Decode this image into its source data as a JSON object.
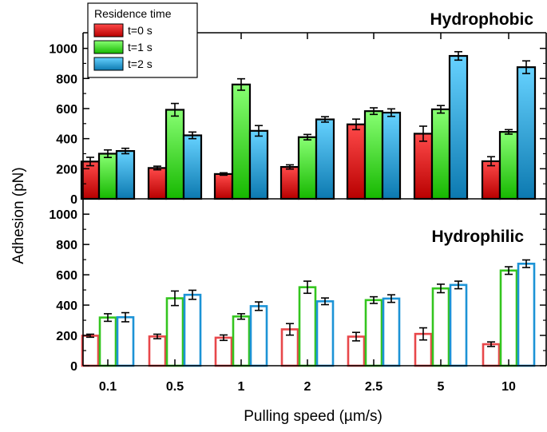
{
  "chart_data": {
    "type": "bar",
    "xlabel": "Pulling speed (µm/s)",
    "ylabel": "Adhesion (pN)",
    "categories": [
      "0.1",
      "0.5",
      "1",
      "2",
      "2.5",
      "5",
      "10"
    ],
    "legend": {
      "title": "Residence time",
      "placement": "top-left",
      "entries": [
        "t=0 s",
        "t=1 s",
        "t=2 s"
      ]
    },
    "colors": {
      "t0_fill_light": "#ff4a4a",
      "t0_fill_dark": "#b80000",
      "t0_edge": "#e8474a",
      "t1_fill_light": "#88ff73",
      "t1_fill_dark": "#16b800",
      "t1_edge": "#34c51f",
      "t2_fill_light": "#66d2ff",
      "t2_fill_dark": "#0c79b0",
      "t2_edge": "#1c93d6"
    },
    "panels": [
      {
        "title": "Hydrophobic",
        "style": "filled",
        "ylim": [
          0,
          1100
        ],
        "yticks": [
          0,
          200,
          400,
          600,
          800,
          1000
        ],
        "series": [
          {
            "name": "t=0 s",
            "values": [
              248,
              205,
              165,
              212,
              495,
              433,
              250
            ],
            "errors": [
              28,
              12,
              8,
              14,
              35,
              50,
              30
            ]
          },
          {
            "name": "t=1 s",
            "values": [
              300,
              592,
              760,
              410,
              583,
              595,
              445
            ],
            "errors": [
              25,
              42,
              38,
              18,
              22,
              25,
              15
            ]
          },
          {
            "name": "t=2 s",
            "values": [
              318,
              422,
              452,
              528,
              573,
              950,
              875
            ],
            "errors": [
              18,
              22,
              35,
              18,
              25,
              28,
              42
            ]
          }
        ]
      },
      {
        "title": "Hydrophilic",
        "style": "hollow",
        "ylim": [
          0,
          1100
        ],
        "yticks": [
          0,
          200,
          400,
          600,
          800,
          1000
        ],
        "series": [
          {
            "name": "t=0 s",
            "values": [
              198,
              193,
              185,
              240,
              192,
              210,
              142
            ],
            "errors": [
              10,
              15,
              18,
              38,
              28,
              40,
              15
            ]
          },
          {
            "name": "t=1 s",
            "values": [
              318,
              445,
              325,
              518,
              433,
              510,
              628
            ],
            "errors": [
              25,
              48,
              18,
              40,
              22,
              28,
              25
            ]
          },
          {
            "name": "t=2 s",
            "values": [
              320,
              468,
              393,
              425,
              443,
              533,
              673
            ],
            "errors": [
              30,
              30,
              28,
              22,
              25,
              25,
              25
            ]
          }
        ]
      }
    ]
  }
}
